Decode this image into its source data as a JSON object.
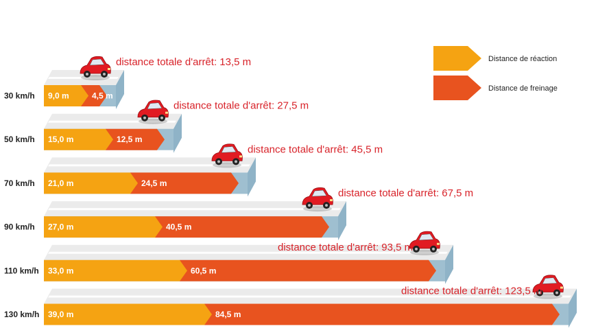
{
  "chart_data": {
    "type": "bar",
    "categories": [
      "30 km/h",
      "50 km/h",
      "70 km/h",
      "90 km/h",
      "110 km/h",
      "130 km/h"
    ],
    "series": [
      {
        "name": "Distance de réaction",
        "values": [
          9.0,
          15.0,
          21.0,
          27.0,
          33.0,
          39.0
        ],
        "labels": [
          "9,0 m",
          "15,0 m",
          "21,0 m",
          "27,0 m",
          "33,0 m",
          "39,0 m"
        ],
        "color": "#f5a312"
      },
      {
        "name": "Distance de freinage",
        "values": [
          4.5,
          12.5,
          24.5,
          40.5,
          60.5,
          84.5
        ],
        "labels": [
          "4,5 m",
          "12,5 m",
          "24,5 m",
          "40,5 m",
          "60,5 m",
          "84,5 m"
        ],
        "color": "#e8531f"
      }
    ],
    "totals": [
      13.5,
      27.5,
      45.5,
      67.5,
      93.5,
      123.5
    ],
    "annotations": [
      "distance totale d'arrêt: 13,5 m",
      "distance totale d'arrêt: 27,5 m",
      "distance totale d'arrêt: 45,5 m",
      "distance totale d'arrêt: 67,5 m",
      "distance totale d'arrêt: 93,5 m",
      "distance totale d'arrêt: 123,5 m"
    ],
    "stacked": true,
    "orientation": "horizontal",
    "legend_position": "top-right",
    "colors": {
      "reaction": "#f5a312",
      "braking": "#e8531f",
      "annotation": "#d8232a",
      "road_top": "#ebebeb",
      "road_side": "#8fb3c7",
      "road_stripe": "#ffffff",
      "car": "#e11b22"
    }
  }
}
